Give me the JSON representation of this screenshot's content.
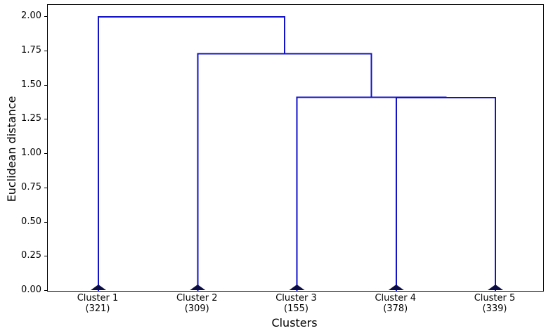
{
  "chart_data": {
    "type": "dendrogram",
    "title": "",
    "xlabel": "Clusters",
    "ylabel": "Euclidean distance",
    "ylim": [
      0,
      2.087
    ],
    "xlim": [
      0,
      50
    ],
    "grid": false,
    "yticks": [
      0.0,
      0.25,
      0.5,
      0.75,
      1.0,
      1.25,
      1.5,
      1.75,
      2.0
    ],
    "ytick_labels": [
      "0.00",
      "0.25",
      "0.50",
      "0.75",
      "1.00",
      "1.25",
      "1.50",
      "1.75",
      "2.00"
    ],
    "leaves": [
      {
        "name": "Cluster 1",
        "count": "(321)",
        "x": 5
      },
      {
        "name": "Cluster 2",
        "count": "(309)",
        "x": 15
      },
      {
        "name": "Cluster 3",
        "count": "(155)",
        "x": 25
      },
      {
        "name": "Cluster 4",
        "count": "(378)",
        "x": 35
      },
      {
        "name": "Cluster 5",
        "count": "(339)",
        "x": 45
      }
    ],
    "links": [
      {
        "x1": 35,
        "base1": 0,
        "x2": 45,
        "base2": 0,
        "height": 1.41
      },
      {
        "x1": 25,
        "base1": 0,
        "x2": 40,
        "base2": 1.41,
        "height": 1.413
      },
      {
        "x1": 15,
        "base1": 0,
        "x2": 32.5,
        "base2": 1.413,
        "height": 1.732
      },
      {
        "x1": 5,
        "base1": 0,
        "x2": 23.75,
        "base2": 1.732,
        "height": 2.0
      }
    ],
    "merges": [
      {
        "clusters": [
          "Cluster 4",
          "Cluster 5"
        ],
        "height": 1.41
      },
      {
        "clusters": [
          "Cluster 3",
          "Cluster 4+5"
        ],
        "height": 1.41
      },
      {
        "clusters": [
          "Cluster 2",
          "Cluster 3+4+5"
        ],
        "height": 1.73
      },
      {
        "clusters": [
          "Cluster 1",
          "Cluster 2+3+4+5"
        ],
        "height": 2.0
      }
    ],
    "colors": {
      "link": "#1212c8",
      "leaf_marker": "#0d0d45",
      "axis": "#000000",
      "background": "#ffffff"
    }
  }
}
